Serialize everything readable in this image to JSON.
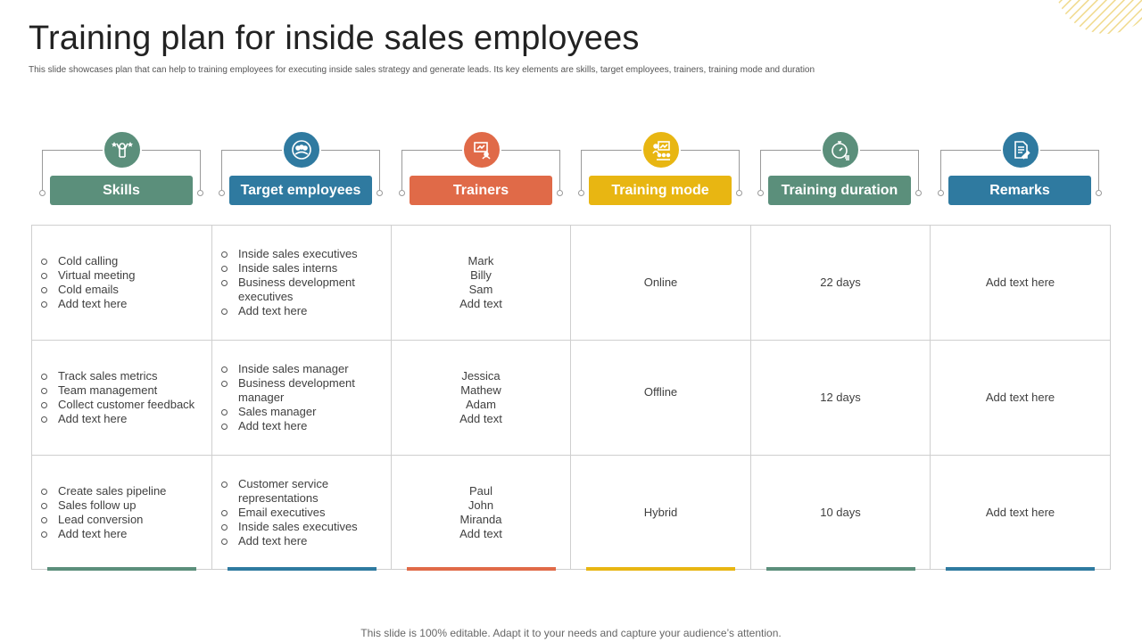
{
  "slide": {
    "title": "Training plan for inside sales employees",
    "subtitle": "This slide showcases plan that can help to training employees for executing inside sales strategy and generate leads. Its key elements are skills, target employees, trainers, training mode and duration",
    "footer": "This slide is 100% editable. Adapt it to your needs and capture your audience’s attention."
  },
  "colors": {
    "green": "#5b8f7b",
    "blue": "#2f7aa0",
    "orange": "#e06a48",
    "yellow": "#e8b612",
    "corner": "#f0d98a"
  },
  "columns": [
    {
      "label": "Skills",
      "icon": "person-star-icon",
      "color": "#5b8f7b"
    },
    {
      "label": "Target employees",
      "icon": "team-target-icon",
      "color": "#2f7aa0"
    },
    {
      "label": "Trainers",
      "icon": "presenter-board-icon",
      "color": "#e06a48"
    },
    {
      "label": "Training mode",
      "icon": "classroom-chart-icon",
      "color": "#e8b612"
    },
    {
      "label": "Training duration",
      "icon": "stopwatch-icon",
      "color": "#5b8f7b"
    },
    {
      "label": "Remarks",
      "icon": "document-pen-icon",
      "color": "#2f7aa0"
    }
  ],
  "rows": [
    {
      "skills": [
        "Cold calling",
        "Virtual meeting",
        "Cold emails",
        "Add text here"
      ],
      "target": [
        "Inside sales executives",
        "Inside sales interns",
        "Business development executives",
        "Add text here"
      ],
      "trainers": [
        "Mark",
        "Billy",
        "Sam",
        "Add text"
      ],
      "mode": "Online",
      "duration": "22 days",
      "remarks": "Add text here"
    },
    {
      "skills": [
        "Track sales metrics",
        "Team management",
        "Collect customer feedback",
        "Add text here"
      ],
      "target": [
        "Inside sales manager",
        "Business development manager",
        "Sales manager",
        "Add text here"
      ],
      "trainers": [
        "Jessica",
        "Mathew",
        "Adam",
        "Add text"
      ],
      "mode": "Offline",
      "duration": "12 days",
      "remarks": "Add text here"
    },
    {
      "skills": [
        "Create sales pipeline",
        "Sales follow up",
        "Lead conversion",
        "Add text here"
      ],
      "target": [
        "Customer service representations",
        "Email executives",
        "Inside sales executives",
        "Add text here"
      ],
      "trainers": [
        "Paul",
        "John",
        "Miranda",
        "Add text"
      ],
      "mode": "Hybrid",
      "duration": "10 days",
      "remarks": "Add text here"
    }
  ]
}
